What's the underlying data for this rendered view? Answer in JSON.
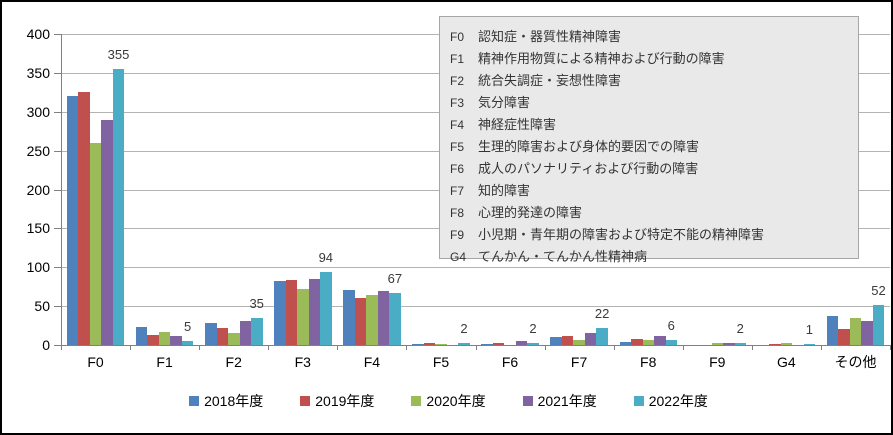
{
  "chart_data": {
    "type": "bar",
    "title": "",
    "xlabel": "",
    "ylabel": "",
    "categories": [
      "F0",
      "F1",
      "F2",
      "F3",
      "F4",
      "F5",
      "F6",
      "F7",
      "F8",
      "F9",
      "G4",
      "その他"
    ],
    "series": [
      {
        "name": "2018年度",
        "color": "#4F81BD",
        "values": [
          320,
          23,
          28,
          83,
          71,
          1,
          1,
          10,
          4,
          0,
          0,
          38
        ]
      },
      {
        "name": "2019年度",
        "color": "#C0504D",
        "values": [
          325,
          13,
          22,
          84,
          61,
          3,
          2,
          12,
          8,
          0,
          1,
          21
        ]
      },
      {
        "name": "2020年度",
        "color": "#9BBB59",
        "values": [
          260,
          17,
          16,
          72,
          64,
          1,
          0,
          7,
          7,
          2,
          2,
          35
        ]
      },
      {
        "name": "2021年度",
        "color": "#8064A2",
        "values": [
          290,
          12,
          31,
          85,
          70,
          0,
          5,
          16,
          11,
          2,
          0,
          31
        ]
      },
      {
        "name": "2022年度",
        "color": "#4BACC6",
        "values": [
          355,
          5,
          35,
          94,
          67,
          2,
          2,
          22,
          6,
          2,
          1,
          52
        ]
      }
    ],
    "data_labels_series": "2022年度",
    "data_label_values": [
      355,
      5,
      35,
      94,
      67,
      2,
      2,
      22,
      6,
      2,
      1,
      52
    ],
    "ylim": [
      0,
      400
    ],
    "yticks": [
      0,
      50,
      100,
      150,
      200,
      250,
      300,
      350,
      400
    ],
    "grid": true,
    "legend_position": "bottom",
    "grid_color": "#b3b3b3",
    "axis_color": "#808080",
    "background_color": "#ffffff"
  },
  "annotation_box": {
    "items": [
      {
        "code": "F0",
        "label": "認知症・器質性精神障害"
      },
      {
        "code": "F1",
        "label": "精神作用物質による精神および行動の障害"
      },
      {
        "code": "F2",
        "label": "統合失調症・妄想性障害"
      },
      {
        "code": "F3",
        "label": "気分障害"
      },
      {
        "code": "F4",
        "label": "神経症性障害"
      },
      {
        "code": "F5",
        "label": "生理的障害および身体的要因での障害"
      },
      {
        "code": "F6",
        "label": "成人のパソナリティおよび行動の障害"
      },
      {
        "code": "F7",
        "label": "知的障害"
      },
      {
        "code": "F8",
        "label": "心理的発達の障害"
      },
      {
        "code": "F9",
        "label": "小児期・青年期の障害および特定不能の精神障害"
      },
      {
        "code": "G4",
        "label": "てんかん・てんかん性精神病"
      }
    ]
  },
  "legend": {
    "items": [
      "2018年度",
      "2019年度",
      "2020年度",
      "2021年度",
      "2022年度"
    ]
  }
}
